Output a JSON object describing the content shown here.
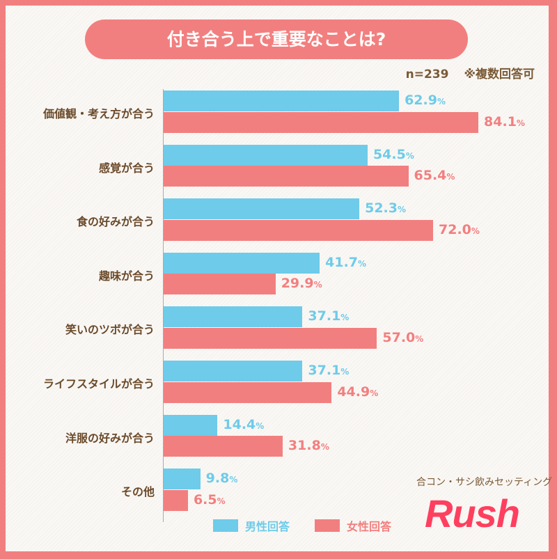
{
  "chart_data": {
    "type": "bar",
    "orientation": "horizontal",
    "title": "付き合う上で重要なことは?",
    "note_n": "n=239",
    "note_multi": "※複数回答可",
    "categories": [
      "価値観・考え方が合う",
      "感覚が合う",
      "食の好みが合う",
      "趣味が合う",
      "笑いのツボが合う",
      "ライフスタイルが合う",
      "洋服の好みが合う",
      "その他"
    ],
    "series": [
      {
        "name": "男性回答",
        "color": "#6ecbe9",
        "values": [
          62.9,
          54.5,
          52.3,
          41.7,
          37.1,
          37.1,
          14.4,
          9.8
        ]
      },
      {
        "name": "女性回答",
        "color": "#f27f7f",
        "values": [
          84.1,
          65.4,
          72.0,
          29.9,
          57.0,
          44.9,
          31.8,
          6.5
        ]
      }
    ],
    "unit": "%",
    "xlim": [
      0,
      100
    ],
    "legend": "bottom"
  },
  "brand": {
    "subtitle": "合コン・サシ飲みセッティング",
    "name": "Rush"
  }
}
